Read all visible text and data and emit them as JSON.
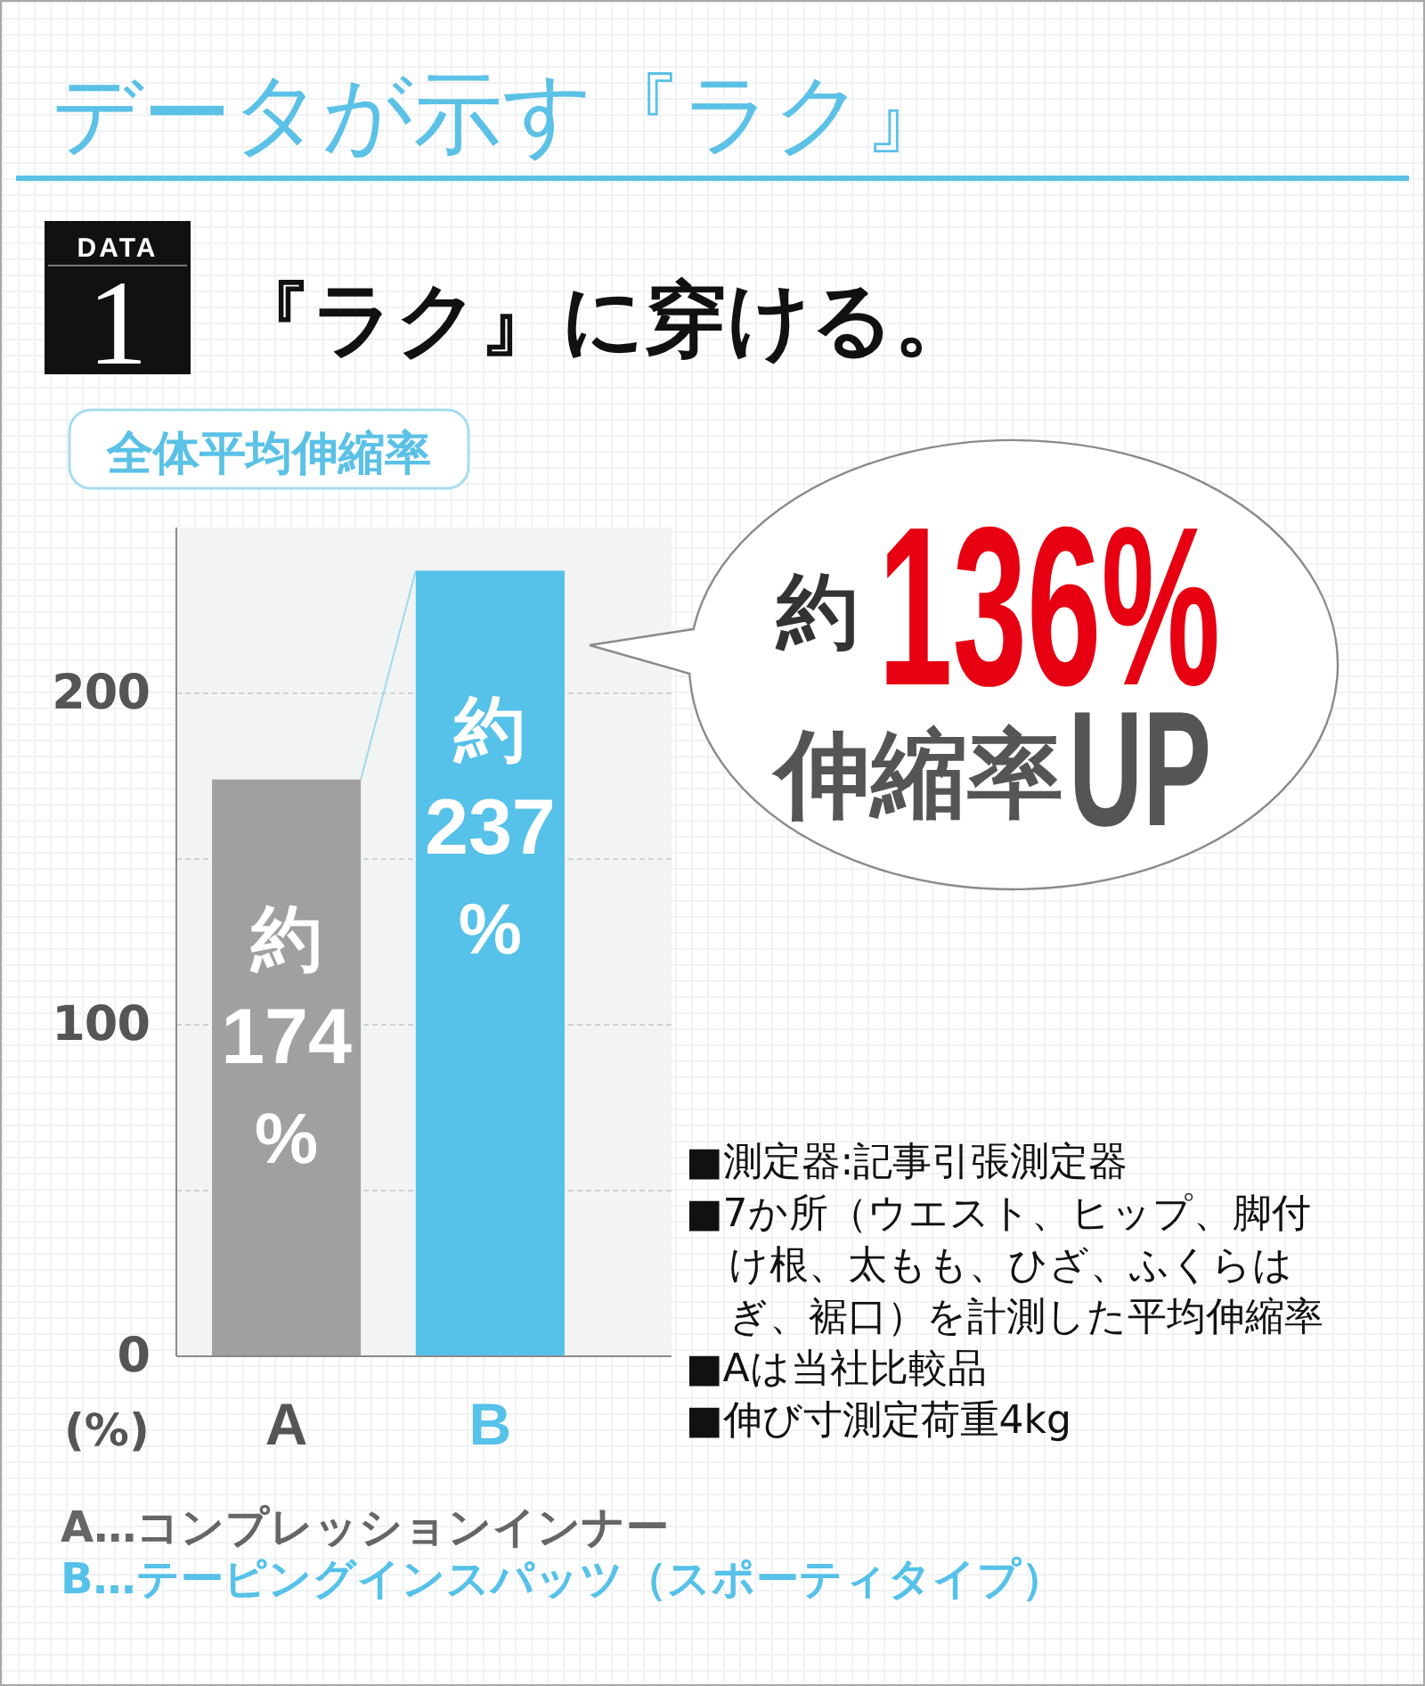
{
  "chart_data": {
    "type": "bar",
    "title": "データが示す『ラク』",
    "subtitle": "『ラク』に穿ける。",
    "ylabel": "全体平均伸縮率",
    "categories": [
      "A",
      "B"
    ],
    "values": [
      174,
      237
    ],
    "colors": [
      "#a0a0a0",
      "#56c1e9"
    ],
    "value_labels": [
      "約174%",
      "約237%"
    ],
    "ylim": [
      0,
      250
    ],
    "yticks": [
      0,
      {
        "value": 50,
        "label": null
      },
      100,
      {
        "value": 150,
        "label": null
      },
      200
    ],
    "grid": "y",
    "annotations": [
      "DATA 1",
      "(%)",
      "約136%",
      "伸縮率UP",
      "■測定器:記事引張測定器",
      "■7か所（ウエスト、ヒップ、脚付け根、太もも、ひざ、ふくらはぎ、裾口）を計測した平均伸縮率",
      "■Aは当社比較品",
      "■伸び寸測定荷重4kg",
      "A…コンプレッションインナー",
      "B…テーピングインスパッツ（スポーティタイプ）"
    ]
  }
}
